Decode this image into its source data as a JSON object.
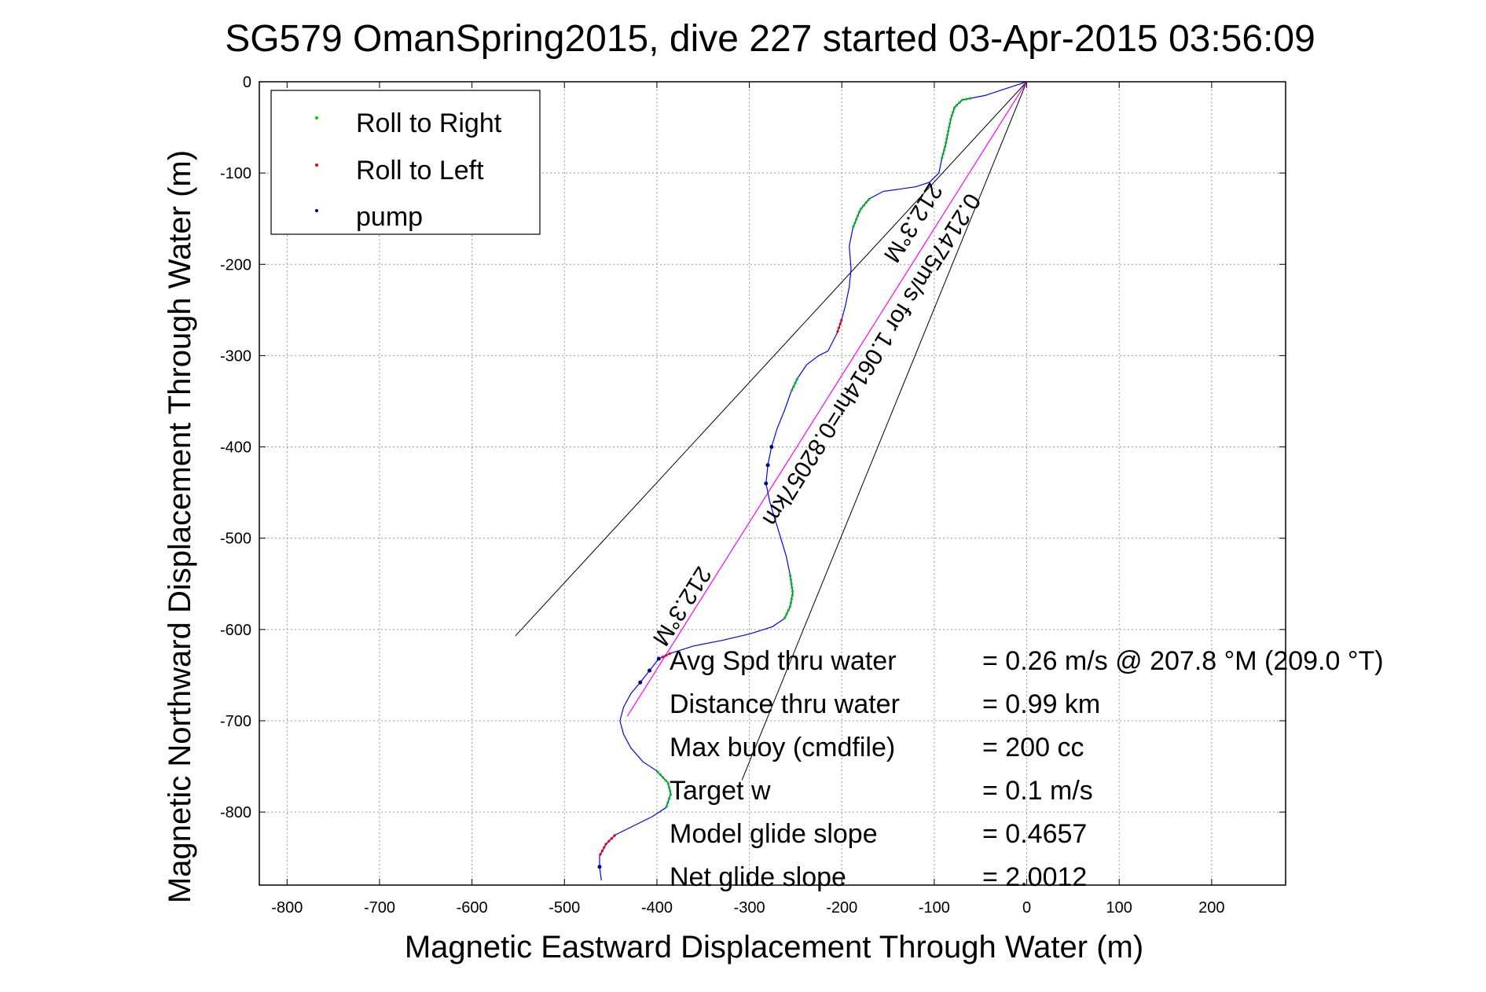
{
  "chart_data": {
    "type": "scatter",
    "title": "SG579 OmanSpring2015, dive 227 started 03-Apr-2015 03:56:09",
    "xlabel": "Magnetic Eastward Displacement Through Water (m)",
    "ylabel": "Magnetic Northward Displacement Through Water (m)",
    "xlim": [
      -830,
      280
    ],
    "ylim": [
      -880,
      0
    ],
    "xticks": [
      -800,
      -700,
      -600,
      -500,
      -400,
      -300,
      -200,
      -100,
      0,
      100,
      200
    ],
    "yticks": [
      0,
      -100,
      -200,
      -300,
      -400,
      -500,
      -600,
      -700,
      -800
    ],
    "grid": true,
    "legend_position": "top-left",
    "legend": [
      {
        "label": "Roll to Right",
        "color": "#00cc00"
      },
      {
        "label": "Roll to Left",
        "color": "#ff0000"
      },
      {
        "label": "pump",
        "color": "#000080"
      }
    ],
    "track_color": "#0000ff",
    "track": [
      [
        0,
        0
      ],
      [
        -15,
        -5
      ],
      [
        -30,
        -10
      ],
      [
        -45,
        -15
      ],
      [
        -60,
        -18
      ],
      [
        -70,
        -20
      ],
      [
        -78,
        -28
      ],
      [
        -82,
        -40
      ],
      [
        -85,
        -55
      ],
      [
        -88,
        -70
      ],
      [
        -92,
        -85
      ],
      [
        -95,
        -100
      ],
      [
        -105,
        -110
      ],
      [
        -120,
        -115
      ],
      [
        -140,
        -118
      ],
      [
        -155,
        -120
      ],
      [
        -170,
        -128
      ],
      [
        -180,
        -140
      ],
      [
        -188,
        -160
      ],
      [
        -192,
        -180
      ],
      [
        -190,
        -205
      ],
      [
        -192,
        -225
      ],
      [
        -196,
        -245
      ],
      [
        -200,
        -260
      ],
      [
        -205,
        -275
      ],
      [
        -210,
        -285
      ],
      [
        -215,
        -295
      ],
      [
        -225,
        -300
      ],
      [
        -238,
        -310
      ],
      [
        -248,
        -325
      ],
      [
        -255,
        -340
      ],
      [
        -262,
        -360
      ],
      [
        -270,
        -380
      ],
      [
        -276,
        -400
      ],
      [
        -280,
        -420
      ],
      [
        -282,
        -440
      ],
      [
        -278,
        -460
      ],
      [
        -272,
        -480
      ],
      [
        -266,
        -500
      ],
      [
        -260,
        -520
      ],
      [
        -256,
        -540
      ],
      [
        -253,
        -560
      ],
      [
        -256,
        -575
      ],
      [
        -262,
        -588
      ],
      [
        -275,
        -597
      ],
      [
        -300,
        -605
      ],
      [
        -330,
        -612
      ],
      [
        -360,
        -618
      ],
      [
        -385,
        -626
      ],
      [
        -398,
        -632
      ],
      [
        -408,
        -645
      ],
      [
        -418,
        -658
      ],
      [
        -428,
        -670
      ],
      [
        -436,
        -685
      ],
      [
        -440,
        -700
      ],
      [
        -436,
        -715
      ],
      [
        -428,
        -730
      ],
      [
        -415,
        -745
      ],
      [
        -400,
        -755
      ],
      [
        -388,
        -768
      ],
      [
        -385,
        -780
      ],
      [
        -390,
        -795
      ],
      [
        -405,
        -805
      ],
      [
        -425,
        -815
      ],
      [
        -445,
        -825
      ],
      [
        -455,
        -835
      ],
      [
        -462,
        -848
      ],
      [
        -462,
        -860
      ],
      [
        -460,
        -875
      ]
    ],
    "roll_right_segments": [
      [
        [
          -60,
          -18
        ],
        [
          -70,
          -20
        ],
        [
          -78,
          -28
        ],
        [
          -82,
          -40
        ],
        [
          -85,
          -55
        ],
        [
          -88,
          -70
        ],
        [
          -92,
          -85
        ]
      ],
      [
        [
          -170,
          -128
        ],
        [
          -180,
          -140
        ],
        [
          -188,
          -160
        ]
      ],
      [
        [
          -248,
          -325
        ],
        [
          -255,
          -340
        ]
      ],
      [
        [
          -256,
          -540
        ],
        [
          -253,
          -560
        ],
        [
          -256,
          -575
        ],
        [
          -262,
          -588
        ]
      ],
      [
        [
          -400,
          -755
        ],
        [
          -388,
          -768
        ],
        [
          -385,
          -780
        ],
        [
          -390,
          -795
        ]
      ]
    ],
    "roll_left_segments": [
      [
        [
          -200,
          -260
        ],
        [
          -205,
          -275
        ]
      ],
      [
        [
          -385,
          -626
        ],
        [
          -398,
          -632
        ]
      ],
      [
        [
          -445,
          -825
        ],
        [
          -455,
          -835
        ],
        [
          -462,
          -848
        ]
      ]
    ],
    "pump_points": [
      [
        -280,
        -420
      ],
      [
        -282,
        -440
      ],
      [
        -408,
        -645
      ],
      [
        -418,
        -658
      ],
      [
        -462,
        -860
      ],
      [
        -398,
        -632
      ],
      [
        -276,
        -400
      ]
    ],
    "heading_line": [
      [
        0,
        0
      ],
      [
        -432,
        -695
      ]
    ],
    "cone_lines": [
      [
        [
          0,
          0
        ],
        [
          -553,
          -607
        ]
      ],
      [
        [
          0,
          0
        ],
        [
          -308,
          -765
        ]
      ]
    ],
    "annotations": [
      {
        "text": "212.3°M",
        "x": -130,
        "y": -150
      },
      {
        "text": "0.21475m/s for 1.0614hr=0.82057km",
        "x": -175,
        "y": -300
      },
      {
        "text": "212.3°M",
        "x": -380,
        "y": -570
      }
    ],
    "stats": [
      {
        "label": "Avg Spd thru water",
        "value": "=  0.26 m/s @ 207.8 °M (209.0 °T)"
      },
      {
        "label": "Distance thru water",
        "value": "=  0.99 km"
      },
      {
        "label": "Max buoy (cmdfile)",
        "value": "= 200 cc"
      },
      {
        "label": "Target w",
        "value": "= 0.1 m/s"
      },
      {
        "label": "Model glide slope",
        "value": "= 0.4657"
      },
      {
        "label": "Net glide slope",
        "value": "= 2.0012"
      }
    ]
  }
}
